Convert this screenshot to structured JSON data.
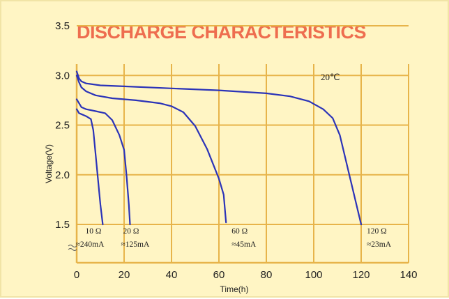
{
  "chart_data": {
    "type": "line",
    "title": "DISCHARGE CHARACTERISTICS",
    "xlabel": "Time(h)",
    "ylabel": "Voltage(V)",
    "xlim": [
      0,
      140
    ],
    "ylim": [
      1.5,
      3.5
    ],
    "x_ticks": [
      "0",
      "20",
      "40",
      "60",
      "80",
      "100",
      "120",
      "140"
    ],
    "y_ticks": [
      "1.5",
      "2.0",
      "2.5",
      "3.0",
      "3.5"
    ],
    "grid": true,
    "annotation": "20℃",
    "colors": {
      "background": "#fff5c4",
      "grid": "#e7b44a",
      "line": "#2b33b8",
      "title": "#ee6d4f"
    },
    "series": [
      {
        "resistance": "10 Ω",
        "current": "≈240mA",
        "x": [
          0,
          0.5,
          1,
          2,
          4,
          6,
          7,
          8,
          9,
          10,
          11
        ],
        "y": [
          2.66,
          2.64,
          2.62,
          2.61,
          2.59,
          2.56,
          2.45,
          2.2,
          1.95,
          1.7,
          1.5
        ]
      },
      {
        "resistance": "20 Ω",
        "current": "≈125mA",
        "x": [
          0,
          1,
          2,
          4,
          8,
          12,
          15,
          18,
          20,
          21,
          22,
          22.5
        ],
        "y": [
          2.76,
          2.72,
          2.68,
          2.66,
          2.64,
          2.62,
          2.55,
          2.4,
          2.25,
          2.0,
          1.7,
          1.5
        ]
      },
      {
        "resistance": "60 Ω",
        "current": "≈45mA",
        "x": [
          0,
          1,
          2,
          4,
          8,
          15,
          25,
          35,
          40,
          45,
          50,
          55,
          58,
          60,
          62,
          63
        ],
        "y": [
          3.0,
          2.93,
          2.88,
          2.84,
          2.8,
          2.77,
          2.75,
          2.72,
          2.69,
          2.63,
          2.49,
          2.26,
          2.08,
          1.96,
          1.8,
          1.52
        ]
      },
      {
        "resistance": "120 Ω",
        "current": "≈23mA",
        "x": [
          0,
          1,
          2,
          4,
          10,
          20,
          40,
          60,
          80,
          90,
          98,
          104,
          108,
          111,
          114,
          117,
          120
        ],
        "y": [
          3.04,
          2.97,
          2.94,
          2.92,
          2.9,
          2.89,
          2.87,
          2.85,
          2.82,
          2.79,
          2.74,
          2.66,
          2.57,
          2.4,
          2.1,
          1.8,
          1.5
        ]
      }
    ]
  }
}
